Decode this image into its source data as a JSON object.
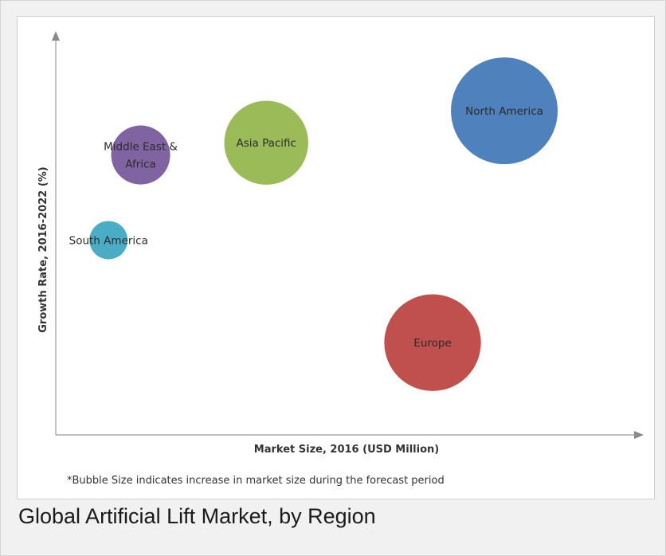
{
  "chart_data": {
    "type": "scatter",
    "subtype": "bubble",
    "xlabel": "Market Size, 2016 (USD Million)",
    "ylabel": "Growth Rate, 2016-2022 (%)",
    "xlim": [
      0,
      100
    ],
    "ylim": [
      0,
      100
    ],
    "grid": false,
    "tick_labels": false,
    "footnote": "*Bubble Size indicates increase in market size during the forecast period",
    "points": [
      {
        "name": "North America",
        "label_lines": [
          "North America"
        ],
        "x": 78.2,
        "y": 82.2,
        "size": 100,
        "color": "#4f81bd"
      },
      {
        "name": "Asia Pacific",
        "label_lines": [
          "Asia Pacific"
        ],
        "x": 36.7,
        "y": 74.1,
        "size": 58,
        "color": "#9bbb59"
      },
      {
        "name": "Middle East & Africa",
        "label_lines": [
          "Middle East &",
          "Africa"
        ],
        "x": 14.8,
        "y": 71.0,
        "size": 25,
        "color": "#8064a2"
      },
      {
        "name": "South America",
        "label_lines": [
          "South America"
        ],
        "x": 9.2,
        "y": 49.4,
        "size": 8,
        "color": "#4bacc6"
      },
      {
        "name": "Europe",
        "label_lines": [
          "Europe"
        ],
        "x": 65.7,
        "y": 23.4,
        "size": 80,
        "color": "#c0504d"
      }
    ]
  },
  "caption": "Global Artificial Lift Market, by Region"
}
